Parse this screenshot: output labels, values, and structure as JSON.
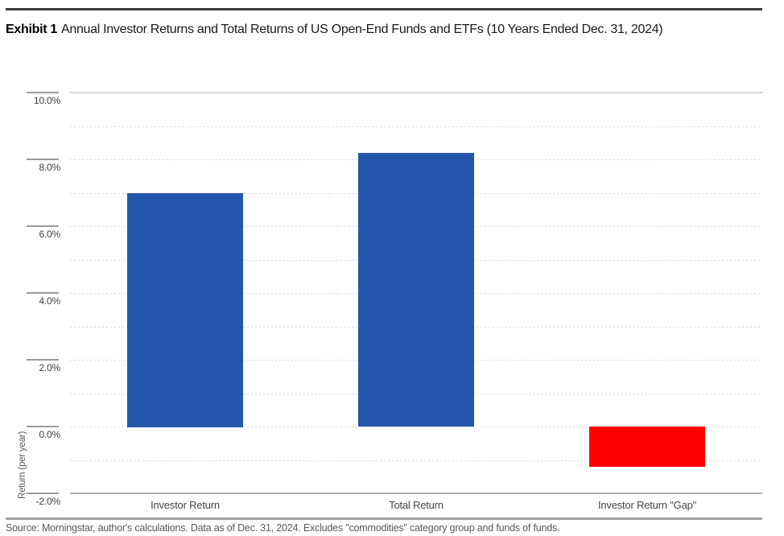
{
  "exhibit": {
    "label": "Exhibit 1",
    "title": "Annual Investor Returns and Total Returns of US Open-End Funds and ETFs (10 Years Ended Dec. 31, 2024)"
  },
  "chart_data": {
    "type": "bar",
    "categories": [
      "Investor Return",
      "Total Return",
      "Investor Return \"Gap\""
    ],
    "values": [
      7.0,
      8.2,
      -1.2
    ],
    "bar_colors": [
      "#2456ab",
      "#2456ab",
      "#ff0000"
    ],
    "title": "",
    "xlabel": "",
    "ylabel": "Return (per year)",
    "ylim": [
      -2,
      10
    ],
    "yticks": [
      10,
      8,
      6,
      4,
      2,
      0,
      -2
    ],
    "ytick_labels": [
      "10.0%",
      "8.0%",
      "6.0%",
      "4.0%",
      "2.0%",
      "0.0%",
      "-2.0%"
    ],
    "minor_gridlines": [
      9,
      8,
      7,
      6,
      5,
      4,
      3,
      2,
      1,
      0,
      -1
    ],
    "grid": "horizontal dotted minor, solid top and baseline",
    "legend": "none"
  },
  "footer": {
    "source_text": "Source: Morningstar, author's calculations. Data as of Dec. 31, 2024. Excludes \"commodities\" category group and funds of funds."
  },
  "colors": {
    "bar_blue": "#2456ab",
    "bar_red": "#ff0000",
    "dotted_gridline": "#d8d8d8",
    "top_gridline": "#d6d6d6",
    "axis_baseline": "#b0b0b0",
    "tick_dash": "#9a9a9a",
    "top_rule": "#3d3d3d",
    "bottom_rule": "#a3a3a3"
  }
}
